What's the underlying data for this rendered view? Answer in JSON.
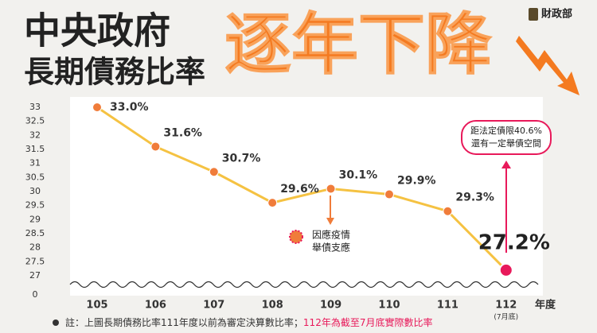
{
  "chart_data": {
    "type": "line",
    "title": [
      "中央政府",
      "長期債務比率"
    ],
    "headline": "逐年下降",
    "logo": "財政部",
    "categories": [
      "105",
      "106",
      "107",
      "108",
      "109",
      "110",
      "111",
      "112"
    ],
    "category_notes": [
      null,
      null,
      null,
      null,
      null,
      null,
      null,
      "(7月底)"
    ],
    "x_label": "年度",
    "values": [
      33.0,
      31.6,
      30.7,
      29.6,
      30.1,
      29.9,
      29.3,
      27.2
    ],
    "value_labels": [
      "33.0%",
      "31.6%",
      "30.7%",
      "29.6%",
      "30.1%",
      "29.9%",
      "29.3%",
      "27.2%"
    ],
    "line_color": "#f5c242",
    "marker_color": "#f07c3a",
    "highlight_color": "#e8195a",
    "ylim": [
      27,
      33
    ],
    "yticks": [
      33,
      32.5,
      32,
      31.5,
      31,
      30.5,
      30,
      29.5,
      29,
      28.5,
      28,
      27.5,
      27,
      0
    ],
    "axis_break": true,
    "grid": false,
    "annotations": [
      "距法定債限40.6%",
      "還有一定舉債空間",
      "因應疫情",
      "舉債支應"
    ],
    "footnote": [
      "註：上圖長期債務比率111年度以前為審定決算數比率；",
      "112年為截至7月底實際數比率"
    ]
  }
}
